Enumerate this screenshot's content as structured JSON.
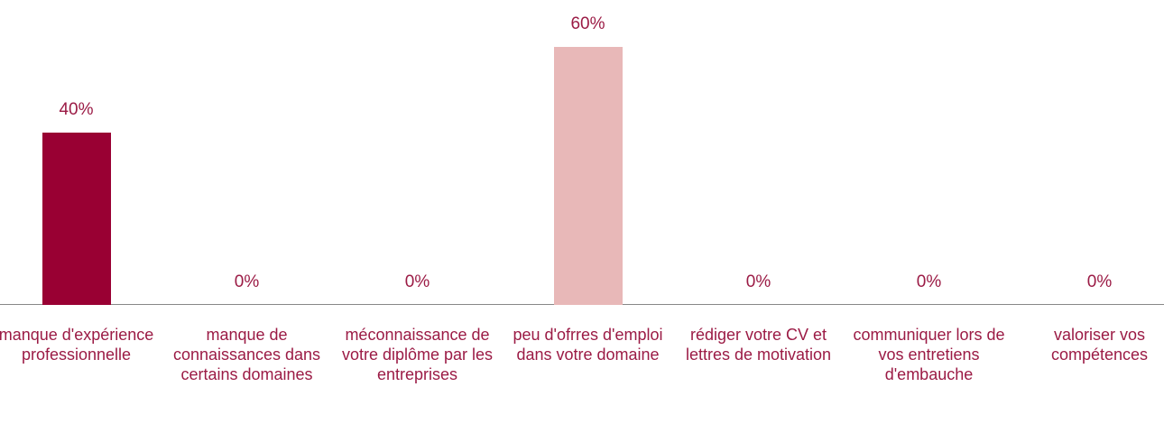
{
  "chart_data": {
    "type": "bar",
    "categories": [
      "manque d'expérience professionnelle",
      "manque de connaissances dans certains domaines",
      "méconnaissance de votre diplôme par les entreprises",
      "peu d'ofrres d'emploi dans votre domaine",
      "rédiger votre CV et lettres de motivation",
      "communiquer lors de vos entretiens d'embauche",
      "valoriser vos compétences"
    ],
    "values": [
      40,
      0,
      0,
      60,
      0,
      0,
      0
    ],
    "value_labels": [
      "40%",
      "0%",
      "0%",
      "60%",
      "0%",
      "0%",
      "0%"
    ],
    "colors": [
      "#990033",
      "#990033",
      "#990033",
      "#e8b8b8",
      "#990033",
      "#990033",
      "#990033"
    ],
    "ylim": [
      0,
      60
    ]
  }
}
